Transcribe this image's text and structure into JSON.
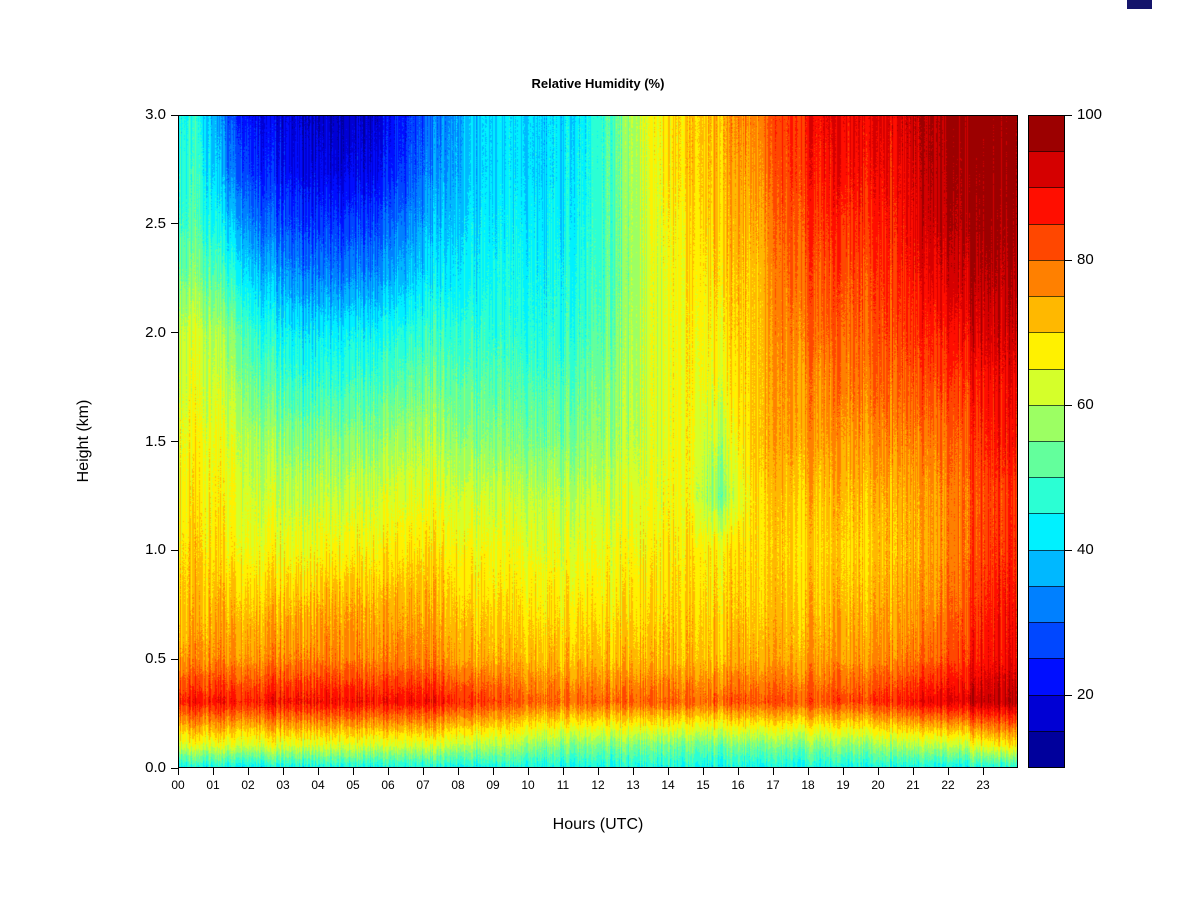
{
  "window": {
    "artifact_color": "#15156b"
  },
  "chart_data": {
    "type": "heatmap",
    "title": "Relative Humidity (%)",
    "xlabel": "Hours (UTC)",
    "ylabel": "Height (km)",
    "x_range": [
      0,
      24
    ],
    "x_tick_values": [
      0,
      1,
      2,
      3,
      4,
      5,
      6,
      7,
      8,
      9,
      10,
      11,
      12,
      13,
      14,
      15,
      16,
      17,
      18,
      19,
      20,
      21,
      22,
      23
    ],
    "x_tick_labels": [
      "00",
      "01",
      "02",
      "03",
      "04",
      "05",
      "06",
      "07",
      "08",
      "09",
      "10",
      "11",
      "12",
      "13",
      "14",
      "15",
      "16",
      "17",
      "18",
      "19",
      "20",
      "21",
      "22",
      "23"
    ],
    "y_range": [
      0,
      3
    ],
    "y_tick_values": [
      0,
      0.5,
      1.0,
      1.5,
      2.0,
      2.5,
      3.0
    ],
    "y_tick_labels": [
      "0.0",
      "0.5",
      "1.0",
      "1.5",
      "2.0",
      "2.5",
      "3.0"
    ],
    "colorbar": {
      "palette": "jet",
      "min": 10,
      "max": 100,
      "step": 5,
      "tick_values": [
        20,
        40,
        60,
        80,
        100
      ],
      "tick_labels": [
        "20",
        "40",
        "60",
        "80",
        "100"
      ]
    },
    "hours": [
      0,
      1,
      2,
      3,
      4,
      5,
      6,
      7,
      8,
      9,
      10,
      11,
      12,
      13,
      14,
      15,
      16,
      17,
      18,
      19,
      20,
      21,
      22,
      23
    ],
    "heights_km": [
      0.0,
      0.1,
      0.3,
      0.5,
      0.75,
      1.0,
      1.25,
      1.5,
      1.75,
      2.0,
      2.25,
      2.5,
      2.75,
      3.0
    ],
    "grid_rh_percent": [
      [
        45,
        45,
        45,
        45,
        45,
        45,
        45,
        45,
        45,
        45,
        45,
        45,
        45,
        45,
        45,
        45,
        45,
        45,
        45,
        45,
        45,
        45,
        45,
        47
      ],
      [
        64,
        64,
        64,
        63,
        63,
        63,
        62,
        62,
        60,
        58,
        56,
        55,
        55,
        54,
        54,
        54,
        55,
        55,
        56,
        56,
        58,
        60,
        62,
        68
      ],
      [
        87,
        88,
        88,
        88,
        88,
        88,
        88,
        87,
        85,
        81,
        80,
        80,
        80,
        80,
        80,
        81,
        82,
        82,
        82,
        83,
        85,
        90,
        92,
        95
      ],
      [
        76,
        77,
        77,
        77,
        77,
        77,
        77,
        76,
        74,
        72,
        72,
        72,
        72,
        72,
        72,
        73,
        74,
        74,
        75,
        75,
        76,
        80,
        85,
        90
      ],
      [
        72,
        73,
        72,
        72,
        73,
        73,
        73,
        72,
        70,
        68,
        68,
        68,
        68,
        69,
        70,
        70,
        71,
        72,
        72,
        72,
        73,
        76,
        82,
        88
      ],
      [
        70,
        68,
        66,
        65,
        66,
        67,
        68,
        68,
        66,
        64,
        64,
        64,
        65,
        66,
        68,
        68,
        70,
        70,
        70,
        70,
        71,
        74,
        80,
        86
      ],
      [
        68,
        66,
        62,
        60,
        60,
        62,
        63,
        63,
        62,
        60,
        60,
        60,
        62,
        64,
        66,
        55,
        70,
        72,
        72,
        72,
        72,
        75,
        80,
        85
      ],
      [
        66,
        64,
        58,
        55,
        55,
        56,
        58,
        58,
        56,
        54,
        54,
        55,
        58,
        62,
        66,
        60,
        72,
        75,
        75,
        75,
        76,
        78,
        82,
        88
      ],
      [
        64,
        60,
        52,
        48,
        48,
        50,
        52,
        53,
        52,
        50,
        50,
        52,
        56,
        62,
        66,
        65,
        72,
        76,
        77,
        78,
        79,
        82,
        85,
        90
      ],
      [
        62,
        56,
        46,
        42,
        42,
        44,
        46,
        48,
        48,
        46,
        46,
        48,
        54,
        62,
        66,
        68,
        72,
        78,
        80,
        80,
        82,
        86,
        90,
        93
      ],
      [
        55,
        48,
        38,
        33,
        32,
        34,
        38,
        42,
        44,
        44,
        44,
        46,
        52,
        62,
        67,
        70,
        72,
        80,
        82,
        82,
        84,
        90,
        94,
        96
      ],
      [
        50,
        40,
        30,
        26,
        25,
        27,
        32,
        38,
        42,
        42,
        42,
        44,
        52,
        63,
        68,
        72,
        74,
        82,
        85,
        85,
        86,
        93,
        97,
        98
      ],
      [
        48,
        32,
        24,
        20,
        18,
        20,
        26,
        34,
        40,
        40,
        40,
        43,
        52,
        64,
        70,
        73,
        76,
        84,
        88,
        88,
        88,
        95,
        98,
        99
      ],
      [
        46,
        28,
        20,
        17,
        15,
        17,
        24,
        32,
        40,
        40,
        40,
        42,
        52,
        65,
        70,
        74,
        78,
        85,
        90,
        90,
        90,
        96,
        99,
        100
      ]
    ]
  }
}
